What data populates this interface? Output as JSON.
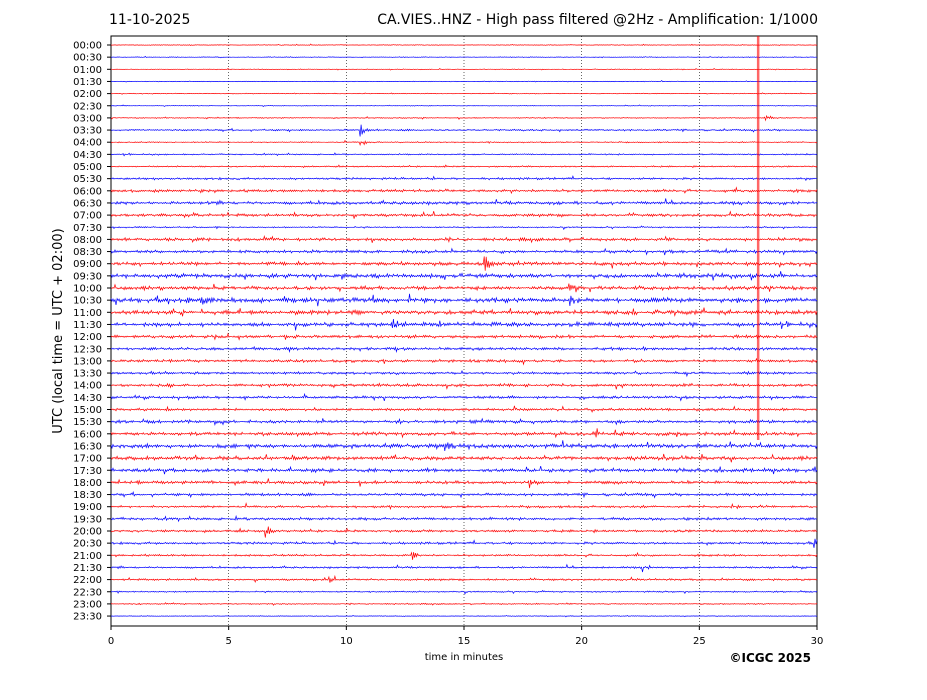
{
  "header": {
    "date": "11-10-2025",
    "title": "CA.VIES..HNZ - High pass filtered @2Hz - Amplification: 1/1000"
  },
  "footer": {
    "copyright": "©ICGC 2025"
  },
  "chart_data": {
    "type": "line",
    "title": "CA.VIES..HNZ - High pass filtered @2Hz - Amplification: 1/1000",
    "xlabel": "time in minutes",
    "ylabel": "UTC (local time = UTC + 02:00)",
    "xlim": [
      0,
      30
    ],
    "x_ticks": [
      0,
      5,
      10,
      15,
      20,
      25,
      30
    ],
    "grid": "vertical dotted lines at each x tick",
    "colors": {
      "red": "#ff0000",
      "blue": "#0000ff"
    },
    "rows": [
      {
        "label": "00:00",
        "color": "#ff0000",
        "amplitude": 0.3
      },
      {
        "label": "00:30",
        "color": "#0000ff",
        "amplitude": 0.3
      },
      {
        "label": "01:00",
        "color": "#ff0000",
        "amplitude": 0.3
      },
      {
        "label": "01:30",
        "color": "#0000ff",
        "amplitude": 0.3
      },
      {
        "label": "02:00",
        "color": "#ff0000",
        "amplitude": 0.3
      },
      {
        "label": "02:30",
        "color": "#0000ff",
        "amplitude": 0.3
      },
      {
        "label": "03:00",
        "color": "#ff0000",
        "amplitude": 0.4
      },
      {
        "label": "03:30",
        "color": "#0000ff",
        "amplitude": 0.7
      },
      {
        "label": "04:00",
        "color": "#ff0000",
        "amplitude": 0.5
      },
      {
        "label": "04:30",
        "color": "#0000ff",
        "amplitude": 0.6
      },
      {
        "label": "05:00",
        "color": "#ff0000",
        "amplitude": 0.6
      },
      {
        "label": "05:30",
        "color": "#0000ff",
        "amplitude": 0.9
      },
      {
        "label": "06:00",
        "color": "#ff0000",
        "amplitude": 1.2
      },
      {
        "label": "06:30",
        "color": "#0000ff",
        "amplitude": 1.3
      },
      {
        "label": "07:00",
        "color": "#ff0000",
        "amplitude": 1.2
      },
      {
        "label": "07:30",
        "color": "#0000ff",
        "amplitude": 0.6
      },
      {
        "label": "08:00",
        "color": "#ff0000",
        "amplitude": 1.3
      },
      {
        "label": "08:30",
        "color": "#0000ff",
        "amplitude": 1.3
      },
      {
        "label": "09:00",
        "color": "#ff0000",
        "amplitude": 1.5
      },
      {
        "label": "09:30",
        "color": "#0000ff",
        "amplitude": 1.8
      },
      {
        "label": "10:00",
        "color": "#ff0000",
        "amplitude": 1.6
      },
      {
        "label": "10:30",
        "color": "#0000ff",
        "amplitude": 2.0
      },
      {
        "label": "11:00",
        "color": "#ff0000",
        "amplitude": 1.8
      },
      {
        "label": "11:30",
        "color": "#0000ff",
        "amplitude": 1.8
      },
      {
        "label": "12:00",
        "color": "#ff0000",
        "amplitude": 1.4
      },
      {
        "label": "12:30",
        "color": "#0000ff",
        "amplitude": 1.2
      },
      {
        "label": "13:00",
        "color": "#ff0000",
        "amplitude": 1.2
      },
      {
        "label": "13:30",
        "color": "#0000ff",
        "amplitude": 1.1
      },
      {
        "label": "14:00",
        "color": "#ff0000",
        "amplitude": 1.2
      },
      {
        "label": "14:30",
        "color": "#0000ff",
        "amplitude": 1.1
      },
      {
        "label": "15:00",
        "color": "#ff0000",
        "amplitude": 1.1
      },
      {
        "label": "15:30",
        "color": "#0000ff",
        "amplitude": 1.3
      },
      {
        "label": "16:00",
        "color": "#ff0000",
        "amplitude": 1.5
      },
      {
        "label": "16:30",
        "color": "#0000ff",
        "amplitude": 1.8
      },
      {
        "label": "17:00",
        "color": "#ff0000",
        "amplitude": 1.6
      },
      {
        "label": "17:30",
        "color": "#0000ff",
        "amplitude": 1.6
      },
      {
        "label": "18:00",
        "color": "#ff0000",
        "amplitude": 1.3
      },
      {
        "label": "18:30",
        "color": "#0000ff",
        "amplitude": 1.1
      },
      {
        "label": "19:00",
        "color": "#ff0000",
        "amplitude": 1.0
      },
      {
        "label": "19:30",
        "color": "#0000ff",
        "amplitude": 1.2
      },
      {
        "label": "20:00",
        "color": "#ff0000",
        "amplitude": 1.0
      },
      {
        "label": "20:30",
        "color": "#0000ff",
        "amplitude": 1.0
      },
      {
        "label": "21:00",
        "color": "#ff0000",
        "amplitude": 0.9
      },
      {
        "label": "21:30",
        "color": "#0000ff",
        "amplitude": 0.8
      },
      {
        "label": "22:00",
        "color": "#ff0000",
        "amplitude": 0.8
      },
      {
        "label": "22:30",
        "color": "#0000ff",
        "amplitude": 0.6
      },
      {
        "label": "23:00",
        "color": "#ff0000",
        "amplitude": 0.5
      },
      {
        "label": "23:30",
        "color": "#0000ff",
        "amplitude": 0.3
      }
    ],
    "events": [
      {
        "row": "03:30",
        "x": 10.6,
        "amplitude": 6
      },
      {
        "row": "04:00",
        "x": 10.6,
        "amplitude": 5
      },
      {
        "row": "03:00",
        "x": 27.8,
        "amplitude": 5
      },
      {
        "row": "09:00",
        "x": 15.9,
        "amplitude": 8
      },
      {
        "row": "10:00",
        "x": 19.5,
        "amplitude": 6
      },
      {
        "row": "10:30",
        "x": 3.8,
        "amplitude": 7
      },
      {
        "row": "10:30",
        "x": 19.5,
        "amplitude": 6
      },
      {
        "row": "11:30",
        "x": 12.0,
        "amplitude": 7
      },
      {
        "row": "16:00",
        "x": 20.5,
        "amplitude": 6
      },
      {
        "row": "16:30",
        "x": 14.2,
        "amplitude": 6
      },
      {
        "row": "18:00",
        "x": 17.8,
        "amplitude": 5
      },
      {
        "row": "20:00",
        "x": 6.6,
        "amplitude": 6
      },
      {
        "row": "21:00",
        "x": 12.8,
        "amplitude": 5
      },
      {
        "row": "21:30",
        "x": 22.6,
        "amplitude": 6
      },
      {
        "row": "22:00",
        "x": 9.2,
        "amplitude": 5
      },
      {
        "row": "20:30",
        "x": 29.9,
        "amplitude": 5
      }
    ],
    "marker": {
      "x": 27.5,
      "color": "#ff0000"
    }
  }
}
